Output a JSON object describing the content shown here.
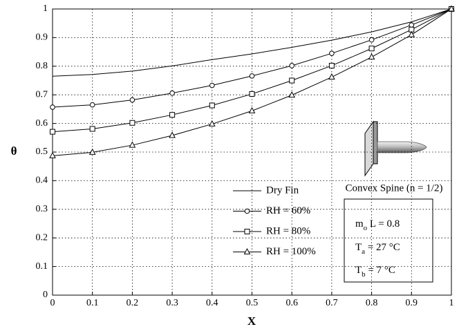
{
  "chart_data": {
    "type": "line",
    "x_label": "X",
    "y_label": "θ",
    "xlim": [
      0,
      1
    ],
    "ylim": [
      0,
      1
    ],
    "xticks": [
      0,
      0.1,
      0.2,
      0.3,
      0.4,
      0.5,
      0.6,
      0.7,
      0.8,
      0.9,
      1
    ],
    "yticks": [
      0,
      0.1,
      0.2,
      0.3,
      0.4,
      0.5,
      0.6,
      0.7,
      0.8,
      0.9,
      1
    ],
    "grid": true,
    "x": [
      0,
      0.1,
      0.2,
      0.3,
      0.4,
      0.5,
      0.6,
      0.7,
      0.8,
      0.9,
      1
    ],
    "series": [
      {
        "name": "Dry Fin",
        "color": "#000000",
        "marker": "none",
        "values": [
          0.765,
          0.771,
          0.783,
          0.801,
          0.823,
          0.843,
          0.866,
          0.891,
          0.92,
          0.955,
          1
        ]
      },
      {
        "name": "RH = 60%",
        "color": "#000000",
        "marker": "circle",
        "values": [
          0.657,
          0.665,
          0.682,
          0.706,
          0.733,
          0.766,
          0.802,
          0.845,
          0.892,
          0.944,
          1
        ]
      },
      {
        "name": "RH = 80%",
        "color": "#000000",
        "marker": "square",
        "values": [
          0.571,
          0.581,
          0.602,
          0.63,
          0.663,
          0.703,
          0.75,
          0.802,
          0.862,
          0.928,
          1
        ]
      },
      {
        "name": "RH = 100%",
        "color": "#000000",
        "marker": "triangle",
        "values": [
          0.487,
          0.499,
          0.524,
          0.558,
          0.598,
          0.644,
          0.699,
          0.762,
          0.832,
          0.91,
          1
        ]
      }
    ],
    "caption": "Convex Spine (n = 1/2)",
    "annotations": [
      [
        "m",
        "o",
        " L = 0.8"
      ],
      [
        "T",
        "a",
        " = 27 °C"
      ],
      [
        "T",
        "b",
        " = 7 °C"
      ]
    ]
  }
}
